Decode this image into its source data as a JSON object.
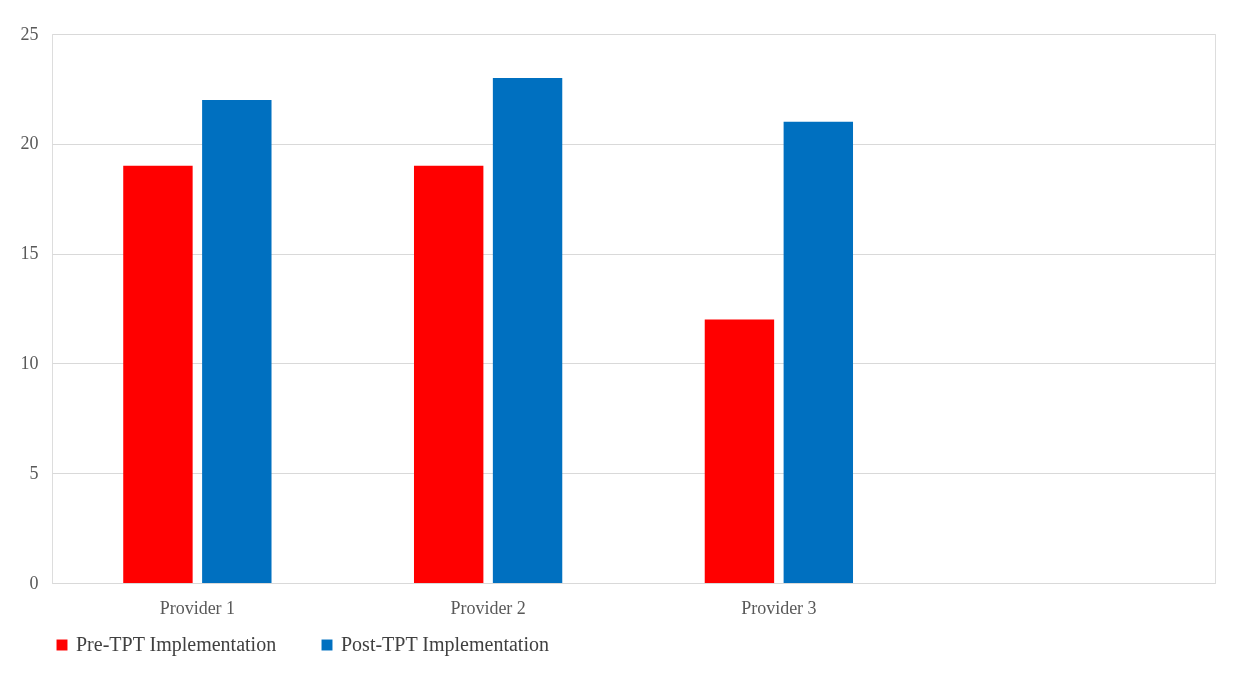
{
  "chart_data": {
    "type": "bar",
    "categories": [
      "Provider 1",
      "Provider 2",
      "Provider 3",
      null
    ],
    "series": [
      {
        "name": "Pre-TPT Implementation",
        "color": "#ff0000",
        "values": [
          19,
          19,
          12,
          null
        ]
      },
      {
        "name": "Post-TPT Implementation",
        "color": "#0070c0",
        "values": [
          22,
          23,
          21,
          null
        ]
      }
    ],
    "ylim": [
      0,
      25
    ],
    "yticks": [
      0,
      5,
      10,
      15,
      20,
      25
    ],
    "grid": "y",
    "legend": "bottom"
  }
}
